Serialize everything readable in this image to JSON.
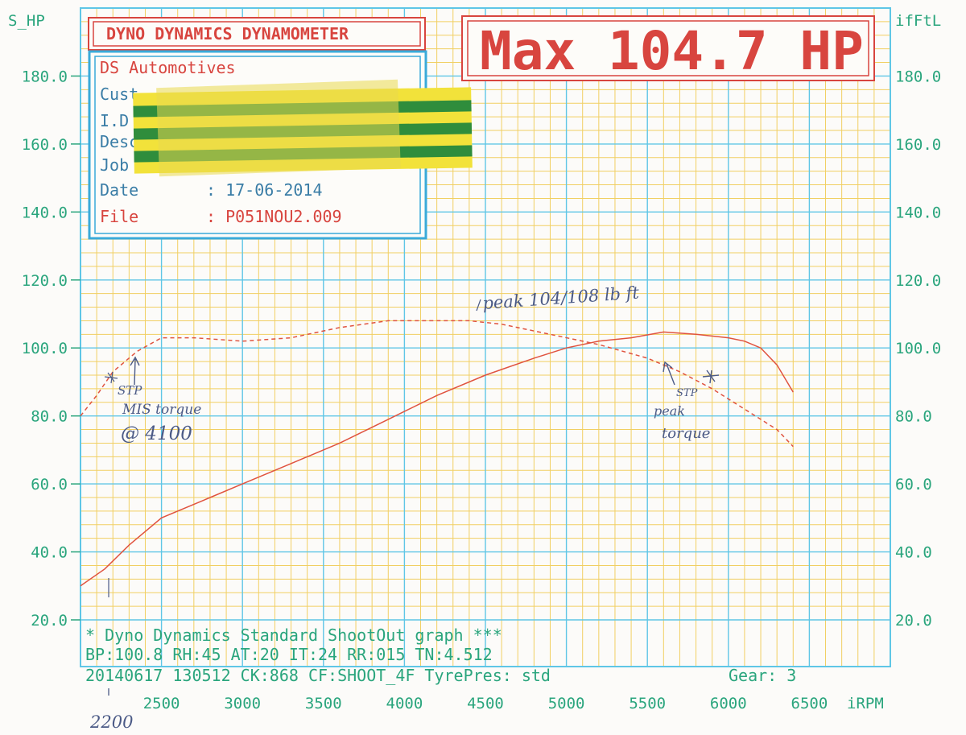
{
  "header": {
    "title": "DYNO DYNAMICS DYNAMOMETER",
    "max_banner": "Max 104.7 HP",
    "left_axis_name": "S_HP",
    "right_axis_name": "ifFtL",
    "x_axis_name": "iRPM"
  },
  "info_box": {
    "company": "DS Automotives",
    "rows": [
      {
        "label": "Cust",
        "value": ""
      },
      {
        "label": "I.D",
        "value": ""
      },
      {
        "label": "Descr",
        "value": ""
      },
      {
        "label": "Job",
        "value": ""
      },
      {
        "label": "Date",
        "value": ": 17-06-2014"
      },
      {
        "label": "File",
        "value": ": P051NOU2.009"
      }
    ]
  },
  "footer": {
    "line1": "* Dyno Dynamics Standard ShootOut graph ***",
    "line2": "BP:100.8 RH:45 AT:20 IT:24  RR:015 TN:4.512",
    "line3": "20140617 130512 CK:868 CF:SHOOT_4F TyrePres: std",
    "gear": "Gear: 3"
  },
  "annotations": {
    "peak_note": "peak 104/108 lb ft",
    "stp_left": "STP",
    "stp_left2": "MIS torque",
    "stp_left3": "@ 4100",
    "stp_right": "STP",
    "stp_right2": "peak",
    "stp_right3": "torque",
    "start_rpm": "2200"
  },
  "colors": {
    "grid_major": "#5fc6e6",
    "grid_minor": "#f1cf62",
    "axis_text": "#2aa57d",
    "curve": "#e0533f",
    "banner_red": "#d8453f",
    "box_blue": "#3aaad9",
    "pen": "#4b5a86"
  },
  "chart_data": {
    "type": "line",
    "title": "DYNO DYNAMICS DYNAMOMETER",
    "xlabel": "iRPM",
    "ylabel": "S_HP",
    "y2label": "ifFtL",
    "xlim": [
      2000,
      7000
    ],
    "ylim": [
      20,
      200
    ],
    "x_ticks": [
      2500,
      3000,
      3500,
      4000,
      4500,
      5000,
      5500,
      6000,
      6500
    ],
    "y_ticks": [
      20.0,
      40.0,
      60.0,
      80.0,
      100.0,
      120.0,
      140.0,
      160.0,
      180.0
    ],
    "y_tick_labels": [
      "20.0",
      "40.0",
      "60.0",
      "80.0",
      "100.0",
      "120.0",
      "140.0",
      "160.0",
      "180.0"
    ],
    "x_tick_labels": [
      "2500",
      "3000",
      "3500",
      "4000",
      "4500",
      "5000",
      "5500",
      "6000",
      "6500"
    ],
    "grid": true,
    "series": [
      {
        "name": "",
        "style": "solid",
        "x": [
          2000,
          2150,
          2300,
          2500,
          2800,
          3000,
          3300,
          3600,
          3900,
          4200,
          4500,
          4800,
          5000,
          5200,
          5400,
          5600,
          5800,
          6000,
          6100,
          6200,
          6300,
          6400
        ],
        "y": [
          30,
          35,
          42,
          50,
          56,
          60,
          66,
          72,
          79,
          86,
          92,
          97,
          100,
          102,
          103,
          104.7,
          104,
          103,
          102,
          100,
          95,
          87
        ]
      },
      {
        "name": "",
        "style": "dashed",
        "x": [
          2000,
          2100,
          2200,
          2350,
          2500,
          2700,
          3000,
          3300,
          3600,
          3900,
          4200,
          4400,
          4600,
          4900,
          5200,
          5500,
          5700,
          5900,
          6100,
          6300,
          6400
        ],
        "y": [
          80,
          86,
          93,
          99,
          103,
          103,
          102,
          103,
          106,
          108,
          108,
          108,
          107,
          104,
          101,
          97,
          93,
          88,
          82,
          76,
          71
        ]
      }
    ]
  }
}
